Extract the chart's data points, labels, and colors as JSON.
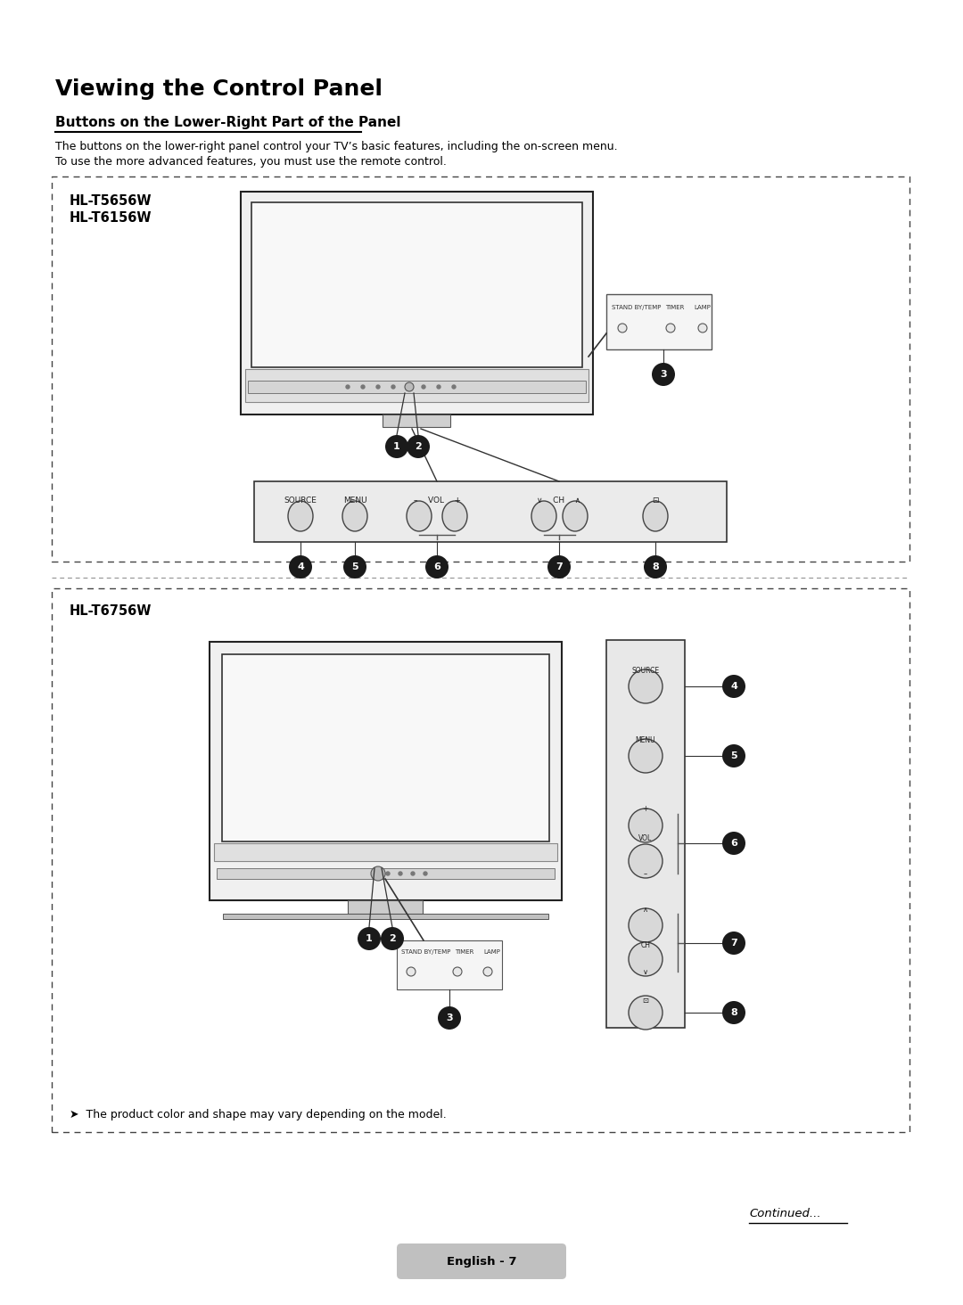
{
  "title": "Viewing the Control Panel",
  "subtitle": "Buttons on the Lower-Right Part of the Panel",
  "body_text_1": "The buttons on the lower-right panel control your TV’s basic features, including the on-screen menu.",
  "body_text_2": "To use the more advanced features, you must use the remote control.",
  "model1_line1": "HL-T5656W",
  "model1_line2": "HL-T6156W",
  "model2_label": "HL-T6756W",
  "note_text": "➤  The product color and shape may vary depending on the model.",
  "footer_text": "English - 7",
  "continued_text": "Continued...",
  "bg_color": "#ffffff",
  "text_color": "#000000"
}
